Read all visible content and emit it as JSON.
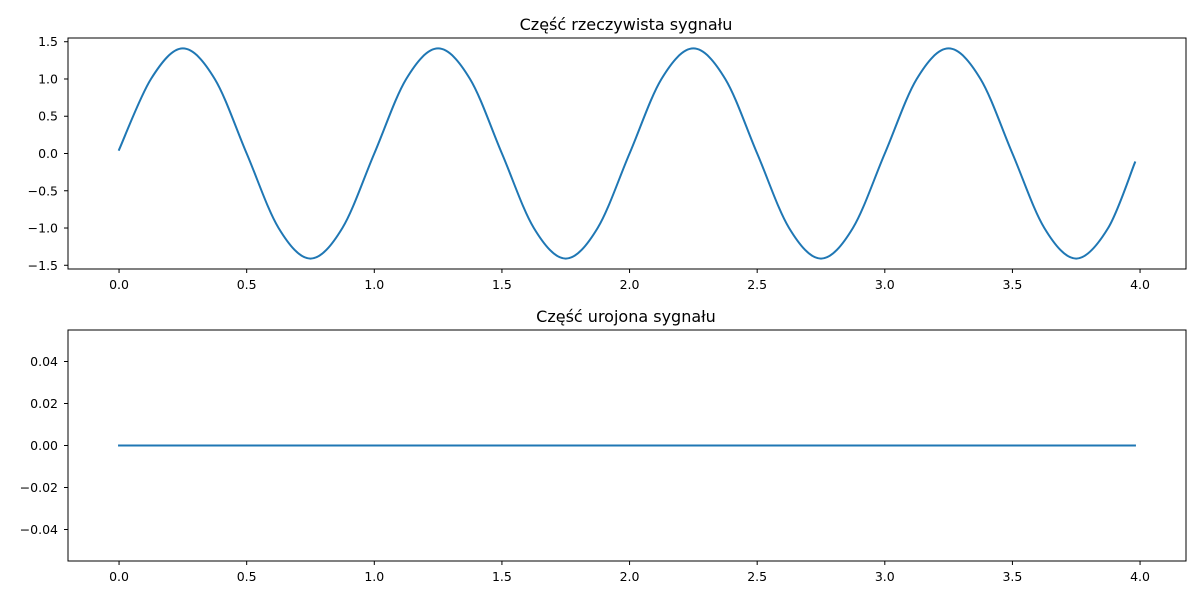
{
  "chart_data": [
    {
      "type": "line",
      "title": "Część rzeczywista sygnału",
      "xlabel": "",
      "ylabel": "",
      "xlim": [
        -0.2,
        4.18
      ],
      "ylim": [
        -1.55,
        1.55
      ],
      "xticks": [
        0.0,
        0.5,
        1.0,
        1.5,
        2.0,
        2.5,
        3.0,
        3.5,
        4.0
      ],
      "xtick_labels": [
        "0.0",
        "0.5",
        "1.0",
        "1.5",
        "2.0",
        "2.5",
        "3.0",
        "3.5",
        "4.0"
      ],
      "yticks": [
        1.5,
        1.0,
        0.5,
        0.0,
        -0.5,
        -1.0,
        -1.5
      ],
      "ytick_labels": [
        "1.5",
        "1.0",
        "0.5",
        "0.0",
        "−0.5",
        "−1.0",
        "−1.5"
      ],
      "grid": false,
      "series": [
        {
          "color": "#1f77b4",
          "x": [
            0.0,
            0.125,
            0.25,
            0.375,
            0.5,
            0.625,
            0.75,
            0.875,
            1.0,
            1.125,
            1.25,
            1.375,
            1.5,
            1.625,
            1.75,
            1.875,
            2.0,
            2.125,
            2.25,
            2.375,
            2.5,
            2.625,
            2.75,
            2.875,
            3.0,
            3.125,
            3.25,
            3.375,
            3.5,
            3.625,
            3.75,
            3.875,
            3.98
          ],
          "y": [
            0.05,
            1.0,
            1.41,
            1.0,
            0.0,
            -1.0,
            -1.41,
            -1.0,
            0.0,
            1.0,
            1.41,
            1.0,
            0.0,
            -1.0,
            -1.41,
            -1.0,
            0.0,
            1.0,
            1.41,
            1.0,
            0.0,
            -1.0,
            -1.41,
            -1.0,
            0.0,
            1.0,
            1.41,
            1.0,
            0.0,
            -1.0,
            -1.41,
            -1.0,
            -0.12
          ]
        }
      ]
    },
    {
      "type": "line",
      "title": "Część urojona sygnału",
      "xlabel": "",
      "ylabel": "",
      "xlim": [
        -0.2,
        4.18
      ],
      "ylim": [
        -0.055,
        0.055
      ],
      "xticks": [
        0.0,
        0.5,
        1.0,
        1.5,
        2.0,
        2.5,
        3.0,
        3.5,
        4.0
      ],
      "xtick_labels": [
        "0.0",
        "0.5",
        "1.0",
        "1.5",
        "2.0",
        "2.5",
        "3.0",
        "3.5",
        "4.0"
      ],
      "yticks": [
        0.04,
        0.02,
        0.0,
        -0.02,
        -0.04
      ],
      "ytick_labels": [
        "0.04",
        "0.02",
        "0.00",
        "−0.02",
        "−0.04"
      ],
      "grid": false,
      "series": [
        {
          "color": "#1f77b4",
          "x": [
            0.0,
            3.98
          ],
          "y": [
            0.0,
            0.0
          ]
        }
      ]
    }
  ]
}
